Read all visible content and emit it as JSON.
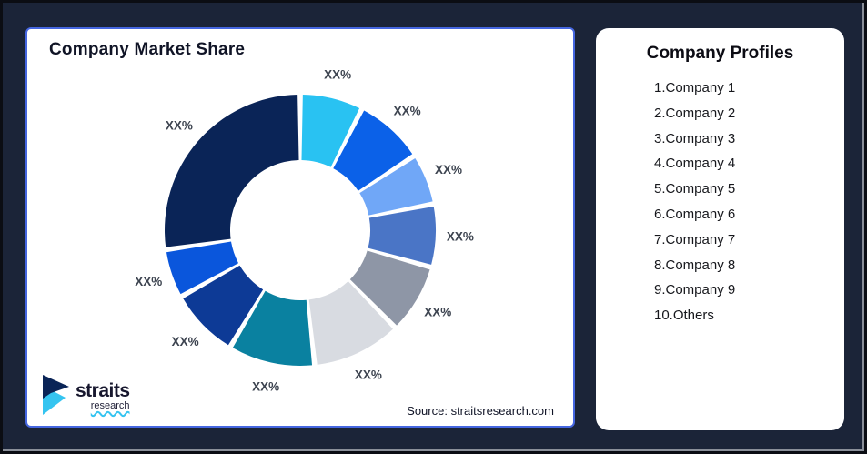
{
  "page": {
    "background_color": "#1B2438",
    "frame_border_color": "#0b0d13",
    "edge_color": "#8a8f99"
  },
  "left_panel": {
    "title": "Company Market Share",
    "border_color": "#4566E0",
    "source": "Source: straitsresearch.com",
    "logo": {
      "text": "straits",
      "subtext": "research",
      "navy": "#0A2457",
      "cyan": "#35C4F0"
    }
  },
  "right_panel": {
    "title": "Company Profiles",
    "items": [
      "1.Company 1",
      "2.Company 2",
      "3.Company 3",
      "4.Company 4",
      "5.Company 5",
      "6.Company 6",
      "7.Company 7",
      "8.Company 8",
      "9.Company 9",
      "10.Others"
    ]
  },
  "chart_data": {
    "type": "pie",
    "subtype": "donut",
    "title": "Company Market Share",
    "start_angle_deg": 0,
    "clockwise": true,
    "gap_deg": 2.2,
    "outer_radius": 149,
    "inner_radius": 77,
    "label_radius": 176,
    "label_color": "#3d4450",
    "segments": [
      {
        "name": "Company 1",
        "label": "XX%",
        "color": "#29C2F2",
        "pct_est": 7.5
      },
      {
        "name": "Company 2",
        "label": "XX%",
        "color": "#0B61E8",
        "pct_est": 8.3
      },
      {
        "name": "Company 3",
        "label": "XX%",
        "color": "#70A7F7",
        "pct_est": 6.1
      },
      {
        "name": "Company 4",
        "label": "XX%",
        "color": "#4A75C6",
        "pct_est": 7.5
      },
      {
        "name": "Company 5",
        "label": "XX%",
        "color": "#8E96A6",
        "pct_est": 8.3
      },
      {
        "name": "Company 6",
        "label": "XX%",
        "color": "#D8DBE1",
        "pct_est": 10.6
      },
      {
        "name": "Company 7",
        "label": "XX%",
        "color": "#0A81A0",
        "pct_est": 10.3
      },
      {
        "name": "Company 8",
        "label": "XX%",
        "color": "#0D3A96",
        "pct_est": 8.3
      },
      {
        "name": "Company 9",
        "label": "XX%",
        "color": "#0A56DC",
        "pct_est": 5.8
      },
      {
        "name": "Others",
        "label": "XX%",
        "color": "#0A2457",
        "pct_est": 27.3
      }
    ]
  }
}
